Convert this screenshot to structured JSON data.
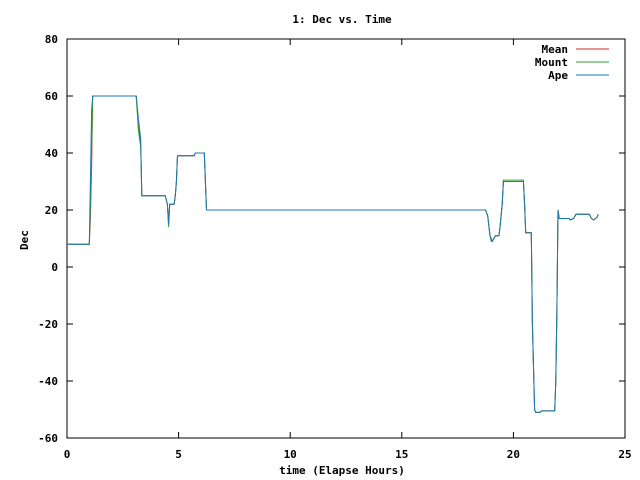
{
  "chart_data": {
    "type": "line",
    "title": "1: Dec vs. Time",
    "xlabel": "time (Elapse Hours)",
    "ylabel": "Dec",
    "xlim": [
      0,
      25
    ],
    "ylim": [
      -60,
      80
    ],
    "xticks": [
      0,
      5,
      10,
      15,
      20,
      25
    ],
    "yticks": [
      -60,
      -40,
      -20,
      0,
      20,
      40,
      60,
      80
    ],
    "grid": false,
    "legend_position": "top-right",
    "series": [
      {
        "name": "Mean",
        "color": "#d62728",
        "points": [
          [
            0,
            8
          ],
          [
            1.0,
            8
          ],
          [
            1.05,
            17
          ],
          [
            1.1,
            35
          ],
          [
            1.15,
            60
          ],
          [
            3.1,
            60
          ],
          [
            3.2,
            50
          ],
          [
            3.3,
            43
          ],
          [
            3.35,
            25
          ],
          [
            4.4,
            25
          ],
          [
            4.5,
            22
          ],
          [
            4.55,
            15
          ],
          [
            4.6,
            22
          ],
          [
            4.8,
            22
          ],
          [
            4.85,
            25
          ],
          [
            4.9,
            30
          ],
          [
            4.95,
            39
          ],
          [
            5.7,
            39
          ],
          [
            5.75,
            40
          ],
          [
            6.15,
            40
          ],
          [
            6.2,
            30
          ],
          [
            6.25,
            20
          ],
          [
            18.75,
            20
          ],
          [
            18.85,
            18
          ],
          [
            18.95,
            11
          ],
          [
            19.0,
            10
          ],
          [
            19.05,
            9
          ],
          [
            19.2,
            11
          ],
          [
            19.35,
            11
          ],
          [
            19.4,
            14
          ],
          [
            19.5,
            22
          ],
          [
            19.55,
            30
          ],
          [
            20.45,
            30
          ],
          [
            20.5,
            22
          ],
          [
            20.55,
            12
          ],
          [
            20.8,
            12
          ],
          [
            20.85,
            -20
          ],
          [
            20.9,
            -35
          ],
          [
            20.95,
            -50
          ],
          [
            21.0,
            -51
          ],
          [
            21.2,
            -51
          ],
          [
            21.25,
            -50.5
          ],
          [
            21.85,
            -50.5
          ],
          [
            21.9,
            -40
          ],
          [
            21.95,
            -15
          ],
          [
            22.0,
            20
          ],
          [
            22.05,
            17
          ],
          [
            22.5,
            17
          ],
          [
            22.55,
            16.5
          ],
          [
            22.7,
            17
          ],
          [
            22.8,
            18.5
          ],
          [
            23.4,
            18.5
          ],
          [
            23.5,
            17
          ],
          [
            23.6,
            16.5
          ],
          [
            23.75,
            17.5
          ],
          [
            23.8,
            18.5
          ]
        ]
      },
      {
        "name": "Mount",
        "color": "#2ca02c",
        "points": [
          [
            0,
            8
          ],
          [
            1.0,
            8
          ],
          [
            1.05,
            20
          ],
          [
            1.1,
            40
          ],
          [
            1.15,
            60
          ],
          [
            3.1,
            60
          ],
          [
            3.2,
            48
          ],
          [
            3.3,
            42
          ],
          [
            3.35,
            25
          ],
          [
            4.4,
            25
          ],
          [
            4.5,
            22
          ],
          [
            4.55,
            14
          ],
          [
            4.6,
            22
          ],
          [
            4.8,
            22
          ],
          [
            4.85,
            25
          ],
          [
            4.9,
            30
          ],
          [
            4.95,
            39
          ],
          [
            5.7,
            39
          ],
          [
            5.75,
            40
          ],
          [
            6.15,
            40
          ],
          [
            6.2,
            30
          ],
          [
            6.25,
            20
          ],
          [
            18.75,
            20
          ],
          [
            18.85,
            18
          ],
          [
            18.95,
            11
          ],
          [
            19.0,
            9
          ],
          [
            19.05,
            9
          ],
          [
            19.2,
            11
          ],
          [
            19.35,
            11
          ],
          [
            19.4,
            14
          ],
          [
            19.5,
            22
          ],
          [
            19.55,
            30.5
          ],
          [
            20.45,
            30.5
          ],
          [
            20.5,
            22
          ],
          [
            20.55,
            12
          ],
          [
            20.8,
            12
          ],
          [
            20.85,
            -20
          ],
          [
            20.9,
            -35
          ],
          [
            20.95,
            -50
          ],
          [
            21.0,
            -51
          ],
          [
            21.2,
            -51
          ],
          [
            21.25,
            -50.5
          ],
          [
            21.85,
            -50.5
          ],
          [
            21.9,
            -40
          ],
          [
            21.95,
            -15
          ],
          [
            22.0,
            20
          ],
          [
            22.05,
            17
          ],
          [
            22.5,
            17
          ],
          [
            22.55,
            16.5
          ],
          [
            22.7,
            17
          ],
          [
            22.8,
            18.5
          ],
          [
            23.4,
            18.5
          ],
          [
            23.5,
            17
          ],
          [
            23.6,
            16.5
          ],
          [
            23.75,
            17.5
          ],
          [
            23.8,
            18.5
          ]
        ]
      },
      {
        "name": "Ape",
        "color": "#1f77b4",
        "points": [
          [
            0,
            8
          ],
          [
            1.0,
            8
          ],
          [
            1.05,
            30
          ],
          [
            1.1,
            55
          ],
          [
            1.15,
            60
          ],
          [
            3.1,
            60
          ],
          [
            3.2,
            52
          ],
          [
            3.3,
            45
          ],
          [
            3.35,
            25
          ],
          [
            4.4,
            25
          ],
          [
            4.5,
            22
          ],
          [
            4.55,
            15
          ],
          [
            4.6,
            22
          ],
          [
            4.8,
            22
          ],
          [
            4.85,
            25
          ],
          [
            4.9,
            30
          ],
          [
            4.95,
            39
          ],
          [
            5.7,
            39
          ],
          [
            5.75,
            40
          ],
          [
            6.15,
            40
          ],
          [
            6.2,
            30
          ],
          [
            6.25,
            20
          ],
          [
            18.75,
            20
          ],
          [
            18.85,
            18
          ],
          [
            18.95,
            11
          ],
          [
            19.0,
            10
          ],
          [
            19.05,
            9
          ],
          [
            19.2,
            11
          ],
          [
            19.35,
            11
          ],
          [
            19.4,
            14
          ],
          [
            19.5,
            22
          ],
          [
            19.55,
            30
          ],
          [
            20.45,
            30
          ],
          [
            20.5,
            22
          ],
          [
            20.55,
            12
          ],
          [
            20.8,
            12
          ],
          [
            20.85,
            -20
          ],
          [
            20.9,
            -35
          ],
          [
            20.95,
            -50
          ],
          [
            21.0,
            -51
          ],
          [
            21.2,
            -51
          ],
          [
            21.25,
            -50.5
          ],
          [
            21.85,
            -50.5
          ],
          [
            21.9,
            -40
          ],
          [
            21.95,
            -15
          ],
          [
            22.0,
            20
          ],
          [
            22.05,
            17
          ],
          [
            22.5,
            17
          ],
          [
            22.55,
            16.5
          ],
          [
            22.7,
            17
          ],
          [
            22.8,
            18.5
          ],
          [
            23.4,
            18.5
          ],
          [
            23.5,
            17
          ],
          [
            23.6,
            16.5
          ],
          [
            23.75,
            17.5
          ],
          [
            23.8,
            18.5
          ]
        ]
      }
    ]
  }
}
